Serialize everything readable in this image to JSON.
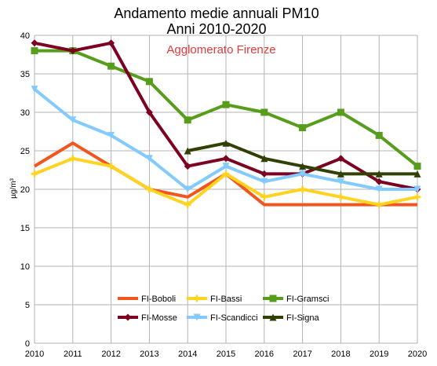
{
  "chart_data": {
    "type": "line",
    "title": "Andamento medie annuali PM10",
    "subtitle": "Anni 2010-2020",
    "annotation": "Agglomerato Firenze",
    "annotation_color": "#e23b3b",
    "xlabel": "",
    "ylabel": "µg/m³",
    "categories": [
      "2010",
      "2011",
      "2012",
      "2013",
      "2014",
      "2015",
      "2016",
      "2017",
      "2018",
      "2019",
      "2020"
    ],
    "ylim": [
      0,
      40
    ],
    "yticks": [
      "0",
      "5",
      "10",
      "15",
      "20",
      "25",
      "30",
      "35",
      "40"
    ],
    "grid": true,
    "legend_position": "bottom-center",
    "series": [
      {
        "name": "FI-Boboli",
        "color": "#f2561d",
        "marker": "none",
        "values": [
          23,
          26,
          23,
          20,
          19,
          22,
          18,
          18,
          18,
          18,
          18
        ]
      },
      {
        "name": "FI-Bassi",
        "color": "#ffd320",
        "marker": "cross",
        "values": [
          22,
          24,
          23,
          20,
          18,
          22,
          19,
          20,
          19,
          18,
          19
        ]
      },
      {
        "name": "FI-Gramsci",
        "color": "#579d1c",
        "marker": "square",
        "values": [
          38,
          38,
          36,
          34,
          29,
          31,
          30,
          28,
          30,
          27,
          23
        ]
      },
      {
        "name": "FI-Mosse",
        "color": "#7e0021",
        "marker": "diamond",
        "values": [
          39,
          38,
          39,
          30,
          23,
          24,
          22,
          22,
          24,
          21,
          20
        ]
      },
      {
        "name": "FI-Scandicci",
        "color": "#83caff",
        "marker": "triangle-down",
        "values": [
          33,
          29,
          27,
          24,
          20,
          23,
          21,
          22,
          21,
          20,
          20
        ]
      },
      {
        "name": "FI-Signa",
        "color": "#314004",
        "marker": "triangle-up",
        "values": [
          null,
          null,
          null,
          null,
          25,
          26,
          24,
          23,
          22,
          22,
          22
        ]
      }
    ]
  }
}
